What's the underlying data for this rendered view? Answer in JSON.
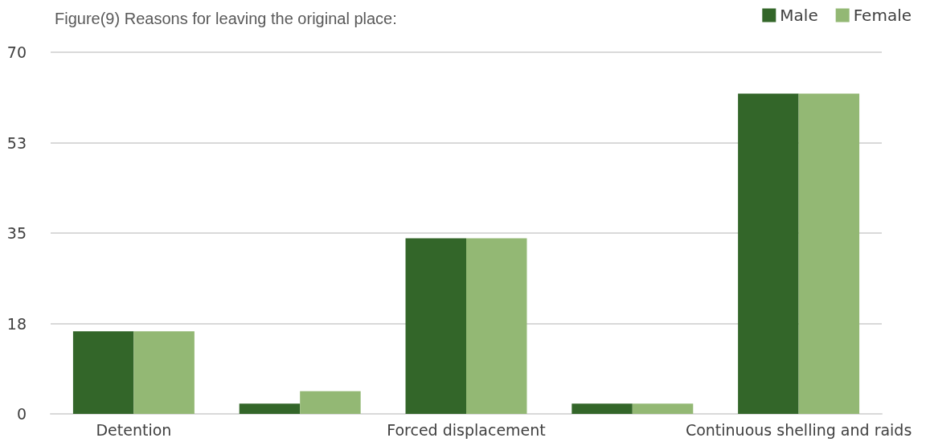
{
  "chart_data": {
    "type": "bar",
    "title": "Figure(9) Reasons for leaving the original place:",
    "categories": [
      "Detention",
      null,
      "Forced displacement",
      null,
      "Continuous shelling and raids"
    ],
    "series": [
      {
        "name": "Male",
        "color": "#336629",
        "values": [
          16,
          2,
          34,
          2,
          62
        ]
      },
      {
        "name": "Female",
        "color": "#93b874",
        "values": [
          16,
          4.4,
          34,
          2,
          62
        ]
      }
    ],
    "ylim": [
      0,
      70
    ],
    "yticks": [
      0,
      {
        "value": 17.5,
        "label": "18"
      },
      35,
      {
        "value": 52.5,
        "label": "53"
      },
      70
    ],
    "grid": "y",
    "legend": "top right"
  }
}
